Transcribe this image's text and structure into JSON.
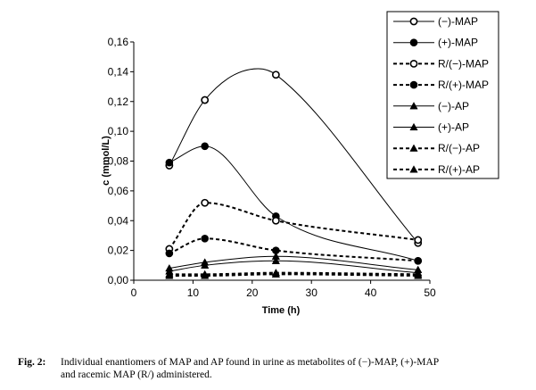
{
  "chart_data": {
    "type": "line",
    "title": "",
    "xlabel": "Time (h)",
    "ylabel": "c (mmol/L)",
    "xlim": [
      0,
      50
    ],
    "ylim": [
      0,
      0.16
    ],
    "x_ticks": [
      "0",
      "10",
      "20",
      "30",
      "40",
      "50"
    ],
    "y_ticks": [
      "0,00",
      "0,02",
      "0,04",
      "0,06",
      "0,08",
      "0,10",
      "0,12",
      "0,14",
      "0,16"
    ],
    "grid": false,
    "legend_position": "top-right",
    "series": [
      {
        "name": "(−)-MAP",
        "marker": "open-circle",
        "line": "solid",
        "x": [
          6,
          12,
          24,
          48
        ],
        "y": [
          0.077,
          0.121,
          0.138,
          0.025
        ],
        "fit_peak": {
          "x": 21,
          "y": 0.142
        }
      },
      {
        "name": "(+)-MAP",
        "marker": "filled-circle",
        "line": "solid",
        "x": [
          6,
          12,
          24,
          48
        ],
        "y": [
          0.079,
          0.09,
          0.043,
          0.013
        ]
      },
      {
        "name": "R/(−)-MAP",
        "marker": "open-circle",
        "line": "dashed",
        "x": [
          6,
          12,
          24,
          48
        ],
        "y": [
          0.021,
          0.052,
          0.04,
          0.027
        ]
      },
      {
        "name": "R/(+)-MAP",
        "marker": "filled-circle",
        "line": "dashed",
        "x": [
          6,
          12,
          24,
          48
        ],
        "y": [
          0.018,
          0.028,
          0.02,
          0.013
        ]
      },
      {
        "name": "(−)-AP",
        "marker": "triangle",
        "line": "solid",
        "x": [
          6,
          12,
          24,
          48
        ],
        "y": [
          0.008,
          0.012,
          0.016,
          0.007
        ]
      },
      {
        "name": "(+)-AP",
        "marker": "triangle",
        "line": "solid",
        "x": [
          6,
          12,
          24,
          48
        ],
        "y": [
          0.006,
          0.01,
          0.013,
          0.005
        ]
      },
      {
        "name": "R/(−)-AP",
        "marker": "triangle",
        "line": "dashed",
        "x": [
          6,
          12,
          24,
          48
        ],
        "y": [
          0.004,
          0.004,
          0.005,
          0.004
        ]
      },
      {
        "name": "R/(+)-AP",
        "marker": "triangle",
        "line": "dashed",
        "x": [
          6,
          12,
          24,
          48
        ],
        "y": [
          0.003,
          0.003,
          0.004,
          0.003
        ]
      }
    ]
  },
  "caption": {
    "label": "Fig. 2:",
    "line1": "Individual enantiomers of MAP and AP found in urine as metabolites of (−)-MAP, (+)-MAP",
    "line2": "and racemic MAP (R/) administered."
  }
}
